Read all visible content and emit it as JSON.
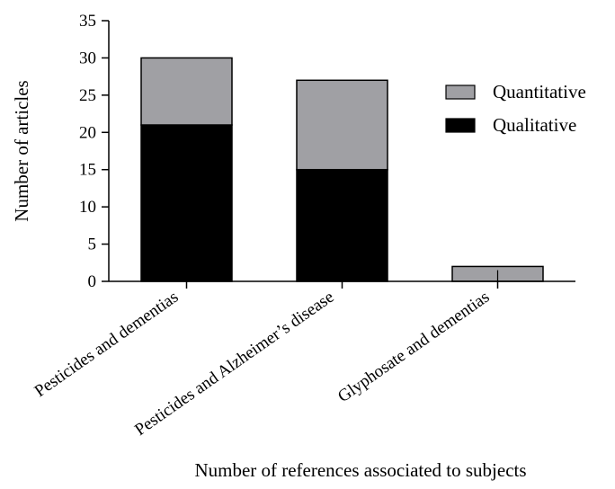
{
  "chart_data": {
    "type": "bar",
    "stacked": true,
    "categories": [
      "Pesticides and dementias",
      "Pesticides and Alzheimer’s disease",
      "Glyphosate and dementias"
    ],
    "series": [
      {
        "name": "Qualitative",
        "values": [
          21,
          15,
          0
        ],
        "color": "#000000"
      },
      {
        "name": "Quantitative",
        "values": [
          9,
          12,
          2
        ],
        "color": "#a0a0a4"
      }
    ],
    "xlabel": "Number of references associated to subjects",
    "ylabel": "Number of articles",
    "ylim": [
      0,
      35
    ],
    "yticks": [
      0,
      5,
      10,
      15,
      20,
      25,
      30,
      35
    ],
    "grid": false,
    "legend": {
      "placement": "right",
      "entries": [
        {
          "label": "Quantitative",
          "color": "#a0a0a4"
        },
        {
          "label": "Qualitative",
          "color": "#000000"
        }
      ]
    }
  }
}
